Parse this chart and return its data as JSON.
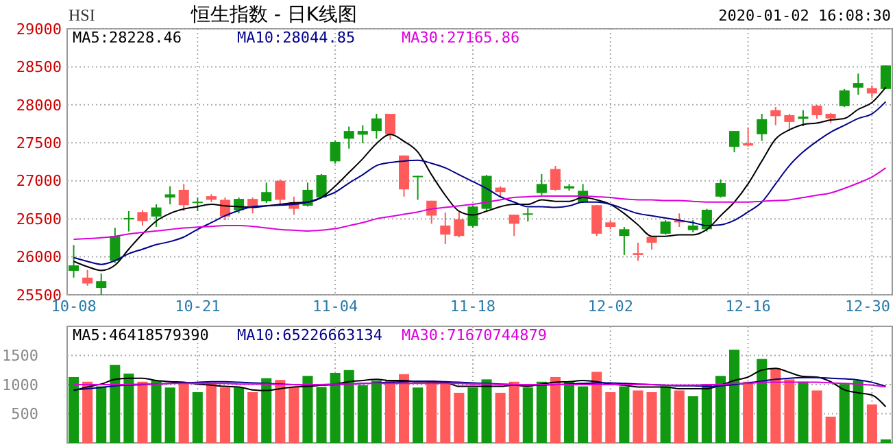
{
  "chart_data": [
    {
      "type": "candlestick",
      "title": "恒生指数 - 日K线图",
      "annotations": [
        "HSI",
        "2020-01-02 16:08:30"
      ],
      "categories": [
        "10-08",
        null,
        null,
        null,
        null,
        null,
        null,
        null,
        null,
        "10-21",
        null,
        null,
        null,
        null,
        null,
        null,
        null,
        null,
        null,
        "11-04",
        null,
        null,
        null,
        null,
        null,
        null,
        null,
        null,
        null,
        "11-18",
        null,
        null,
        null,
        null,
        null,
        null,
        null,
        null,
        null,
        "12-02",
        null,
        null,
        null,
        null,
        null,
        null,
        null,
        null,
        null,
        "12-16",
        null,
        null,
        null,
        null,
        null,
        null,
        null,
        null,
        "12-30",
        null
      ],
      "ohlc": [
        [
          25816,
          26155,
          25726,
          25887
        ],
        [
          25726,
          25828,
          25619,
          25649
        ],
        [
          25590,
          25780,
          25500,
          25679
        ],
        [
          25947,
          26381,
          25917,
          26274
        ],
        [
          26500,
          26601,
          26333,
          26510
        ],
        [
          26589,
          26613,
          26411,
          26470
        ],
        [
          26530,
          26691,
          26393,
          26649
        ],
        [
          26780,
          26929,
          26691,
          26822
        ],
        [
          26881,
          26958,
          26601,
          26679
        ],
        [
          26720,
          26780,
          26601,
          26725
        ],
        [
          26798,
          26822,
          26720,
          26750
        ],
        [
          26750,
          26780,
          26482,
          26530
        ],
        [
          26613,
          26780,
          26571,
          26762
        ],
        [
          26762,
          26780,
          26571,
          26661
        ],
        [
          26732,
          26976,
          26708,
          26851
        ],
        [
          27000,
          27018,
          26691,
          26750
        ],
        [
          26720,
          26792,
          26554,
          26631
        ],
        [
          26673,
          26976,
          26661,
          26881
        ],
        [
          26780,
          27089,
          26768,
          27077
        ],
        [
          27256,
          27524,
          27226,
          27512
        ],
        [
          27554,
          27714,
          27423,
          27655
        ],
        [
          27607,
          27732,
          27494,
          27655
        ],
        [
          27655,
          27881,
          27554,
          27821
        ],
        [
          27881,
          27881,
          27542,
          27613
        ],
        [
          27333,
          27333,
          26792,
          26887
        ],
        [
          27047,
          27065,
          26750,
          27065
        ],
        [
          26738,
          26738,
          26435,
          26542
        ],
        [
          26411,
          26583,
          26167,
          26292
        ],
        [
          26494,
          26589,
          26256,
          26274
        ],
        [
          26405,
          26679,
          26381,
          26661
        ],
        [
          26631,
          27077,
          26613,
          27065
        ],
        [
          26911,
          26929,
          26792,
          26851
        ],
        [
          26554,
          26554,
          26274,
          26435
        ],
        [
          26554,
          26643,
          26464,
          26571
        ],
        [
          26839,
          27089,
          26810,
          26958
        ],
        [
          27155,
          27196,
          26869,
          26881
        ],
        [
          26899,
          26958,
          26869,
          26929
        ],
        [
          26720,
          26958,
          26708,
          26869
        ],
        [
          26679,
          26679,
          26274,
          26304
        ],
        [
          26453,
          26482,
          26363,
          26393
        ],
        [
          26274,
          26393,
          26024,
          26363
        ],
        [
          26048,
          26185,
          25947,
          26024
        ],
        [
          26262,
          26274,
          26096,
          26185
        ],
        [
          26304,
          26482,
          26292,
          26464
        ],
        [
          26482,
          26571,
          26393,
          26453
        ],
        [
          26351,
          26482,
          26322,
          26411
        ],
        [
          26363,
          26631,
          26333,
          26619
        ],
        [
          26792,
          27018,
          26780,
          26970
        ],
        [
          27447,
          27655,
          27375,
          27655
        ],
        [
          27494,
          27702,
          27447,
          27464
        ],
        [
          27613,
          27881,
          27524,
          27810
        ],
        [
          27929,
          27970,
          27732,
          27851
        ],
        [
          27863,
          27881,
          27655,
          27774
        ],
        [
          27815,
          27929,
          27720,
          27845
        ],
        [
          27988,
          28000,
          27815,
          27863
        ],
        [
          27881,
          27893,
          27762,
          27821
        ],
        [
          27982,
          28208,
          27970,
          28190
        ],
        [
          28226,
          28411,
          28131,
          28286
        ],
        [
          28220,
          28256,
          28089,
          28149
        ],
        [
          28208,
          28518,
          28208,
          28518
        ]
      ],
      "colors": [
        "#119911",
        "#ff5b5b",
        "#119911",
        "#119911",
        "#119911",
        "#ff5b5b",
        "#119911",
        "#119911",
        "#ff5b5b",
        "#119911",
        "#ff5b5b",
        "#ff5b5b",
        "#119911",
        "#ff5b5b",
        "#119911",
        "#ff5b5b",
        "#ff5b5b",
        "#119911",
        "#119911",
        "#119911",
        "#119911",
        "#119911",
        "#119911",
        "#ff5b5b",
        "#ff5b5b",
        "#119911",
        "#ff5b5b",
        "#ff5b5b",
        "#ff5b5b",
        "#119911",
        "#119911",
        "#ff5b5b",
        "#ff5b5b",
        "#119911",
        "#119911",
        "#ff5b5b",
        "#119911",
        "#119911",
        "#ff5b5b",
        "#ff5b5b",
        "#119911",
        "#ff5b5b",
        "#ff5b5b",
        "#119911",
        "#ff5b5b",
        "#119911",
        "#119911",
        "#119911",
        "#119911",
        "#ff5b5b",
        "#119911",
        "#ff5b5b",
        "#ff5b5b",
        "#119911",
        "#ff5b5b",
        "#ff5b5b",
        "#119911",
        "#119911",
        "#ff5b5b",
        "#119911"
      ],
      "series": [
        {
          "type": "line",
          "name": "MA5:28228.46",
          "color": "#000000",
          "values": [
            25940,
            25870,
            25820,
            25890,
            26100,
            26300,
            26470,
            26570,
            26630,
            26660,
            26690,
            26670,
            26660,
            26650,
            26670,
            26690,
            26710,
            26720,
            26780,
            26930,
            27110,
            27290,
            27490,
            27610,
            27520,
            27380,
            27080,
            26810,
            26600,
            26550,
            26600,
            26660,
            26690,
            26690,
            26750,
            26730,
            26730,
            26780,
            26750,
            26690,
            26570,
            26420,
            26270,
            26270,
            26290,
            26290,
            26360,
            26540,
            26720,
            26960,
            27260,
            27550,
            27670,
            27740,
            27760,
            27800,
            27820,
            27940,
            28030,
            28230
          ]
        },
        {
          "type": "line",
          "name": "MA10:28044.85",
          "color": "#00008b",
          "values": [
            25990,
            25940,
            25900,
            25950,
            26040,
            26100,
            26160,
            26200,
            26260,
            26360,
            26450,
            26540,
            26610,
            26660,
            26670,
            26680,
            26690,
            26720,
            26780,
            26850,
            26970,
            27080,
            27200,
            27240,
            27260,
            27270,
            27230,
            27170,
            27080,
            26990,
            26900,
            26790,
            26720,
            26660,
            26660,
            26650,
            26670,
            26720,
            26720,
            26690,
            26630,
            26570,
            26540,
            26510,
            26480,
            26450,
            26410,
            26420,
            26480,
            26590,
            26720,
            26960,
            27200,
            27380,
            27520,
            27640,
            27730,
            27820,
            27880,
            28040
          ]
        },
        {
          "type": "line",
          "name": "MA30:27165.86",
          "color": "#dd00dd",
          "values": [
            26230,
            26240,
            26250,
            26270,
            26300,
            26320,
            26340,
            26360,
            26380,
            26390,
            26400,
            26410,
            26410,
            26400,
            26380,
            26360,
            26350,
            26340,
            26350,
            26370,
            26410,
            26450,
            26500,
            26530,
            26560,
            26590,
            26630,
            26650,
            26670,
            26690,
            26720,
            26750,
            26780,
            26790,
            26800,
            26800,
            26800,
            26800,
            26790,
            26780,
            26760,
            26750,
            26750,
            26740,
            26740,
            26730,
            26720,
            26720,
            26720,
            26720,
            26730,
            26740,
            26750,
            26780,
            26810,
            26840,
            26900,
            26970,
            27050,
            27170
          ]
        }
      ],
      "ylim": [
        25500,
        29000
      ],
      "yticks": [
        25500,
        26000,
        26500,
        27000,
        27500,
        28000,
        28500,
        29000
      ],
      "grid": true,
      "legend": "top"
    },
    {
      "type": "bar",
      "categories": [
        null,
        null,
        null,
        null,
        null,
        null,
        null,
        null,
        null,
        null,
        null,
        null,
        null,
        null,
        null,
        null,
        null,
        null,
        null,
        null,
        null,
        null,
        null,
        null,
        null,
        null,
        null,
        null,
        null,
        null,
        null,
        null,
        null,
        null,
        null,
        null,
        null,
        null,
        null,
        null,
        null,
        null,
        null,
        null,
        null,
        null,
        null,
        null,
        null,
        null,
        null,
        null,
        null,
        null,
        null,
        null,
        null,
        null,
        null,
        null
      ],
      "values": [
        1130,
        1050,
        970,
        1340,
        1190,
        1050,
        1070,
        950,
        1040,
        870,
        1030,
        950,
        950,
        870,
        1110,
        1080,
        950,
        1150,
        960,
        1200,
        1250,
        990,
        1070,
        1070,
        1180,
        950,
        1070,
        1040,
        860,
        950,
        1090,
        860,
        1050,
        950,
        1050,
        1130,
        1050,
        970,
        1220,
        870,
        970,
        900,
        870,
        970,
        900,
        800,
        1010,
        1150,
        1600,
        1050,
        1440,
        1280,
        1090,
        1050,
        900,
        450,
        1010,
        1070,
        660,
        60
      ],
      "colors": [
        "#119911",
        "#ff5b5b",
        "#119911",
        "#119911",
        "#119911",
        "#ff5b5b",
        "#119911",
        "#119911",
        "#ff5b5b",
        "#119911",
        "#ff5b5b",
        "#ff5b5b",
        "#119911",
        "#ff5b5b",
        "#119911",
        "#ff5b5b",
        "#ff5b5b",
        "#119911",
        "#119911",
        "#119911",
        "#119911",
        "#119911",
        "#119911",
        "#ff5b5b",
        "#ff5b5b",
        "#119911",
        "#ff5b5b",
        "#ff5b5b",
        "#ff5b5b",
        "#119911",
        "#119911",
        "#ff5b5b",
        "#ff5b5b",
        "#119911",
        "#119911",
        "#ff5b5b",
        "#119911",
        "#119911",
        "#ff5b5b",
        "#ff5b5b",
        "#119911",
        "#ff5b5b",
        "#ff5b5b",
        "#119911",
        "#ff5b5b",
        "#119911",
        "#119911",
        "#119911",
        "#119911",
        "#ff5b5b",
        "#119911",
        "#ff5b5b",
        "#ff5b5b",
        "#119911",
        "#ff5b5b",
        "#ff5b5b",
        "#119911",
        "#119911",
        "#ff5b5b",
        "#119911"
      ],
      "series": [
        {
          "type": "line",
          "name": "MA5:46418579390",
          "color": "#000000",
          "values": [
            900,
            960,
            1010,
            1090,
            1110,
            1110,
            1070,
            1050,
            1040,
            1010,
            990,
            970,
            960,
            910,
            900,
            930,
            960,
            970,
            990,
            1010,
            1050,
            1070,
            1090,
            1070,
            1070,
            1050,
            1050,
            1040,
            970,
            970,
            970,
            970,
            990,
            970,
            1010,
            1040,
            1050,
            1070,
            1050,
            1010,
            990,
            960,
            960,
            960,
            930,
            930,
            930,
            990,
            1070,
            1130,
            1250,
            1280,
            1210,
            1140,
            1130,
            1050,
            910,
            860,
            820,
            620
          ]
        },
        {
          "type": "line",
          "name": "MA10:65226663134",
          "color": "#00008b",
          "values": [
            910,
            930,
            950,
            980,
            990,
            1000,
            1010,
            1020,
            1030,
            1040,
            1050,
            1050,
            1040,
            1030,
            1020,
            1010,
            1000,
            990,
            990,
            1000,
            1010,
            1020,
            1030,
            1040,
            1050,
            1060,
            1060,
            1050,
            1040,
            1030,
            1020,
            1010,
            1000,
            990,
            990,
            1000,
            1010,
            1020,
            1030,
            1030,
            1020,
            1010,
            1000,
            990,
            980,
            980,
            970,
            980,
            1000,
            1030,
            1060,
            1090,
            1110,
            1120,
            1120,
            1110,
            1100,
            1080,
            1040,
            970
          ]
        },
        {
          "type": "line",
          "name": "MA30:71670744879",
          "color": "#dd00dd",
          "values": [
            1000,
            1000,
            1000,
            1000,
            1000,
            1010,
            1010,
            1020,
            1020,
            1020,
            1020,
            1020,
            1010,
            1010,
            1010,
            1000,
            1000,
            1000,
            1000,
            1010,
            1010,
            1020,
            1020,
            1020,
            1020,
            1020,
            1020,
            1020,
            1020,
            1010,
            1010,
            1000,
            1000,
            1000,
            1000,
            1000,
            1000,
            1000,
            1000,
            1000,
            1000,
            1000,
            1000,
            990,
            990,
            990,
            1000,
            1000,
            1020,
            1020,
            1040,
            1040,
            1040,
            1040,
            1040,
            1030,
            1020,
            1010,
            990,
            960
          ]
        }
      ],
      "ylim": [
        0,
        2000
      ],
      "yticks": [
        500,
        1000,
        1500
      ],
      "tick_labels": "y",
      "grid": true,
      "legend": "top"
    }
  ]
}
